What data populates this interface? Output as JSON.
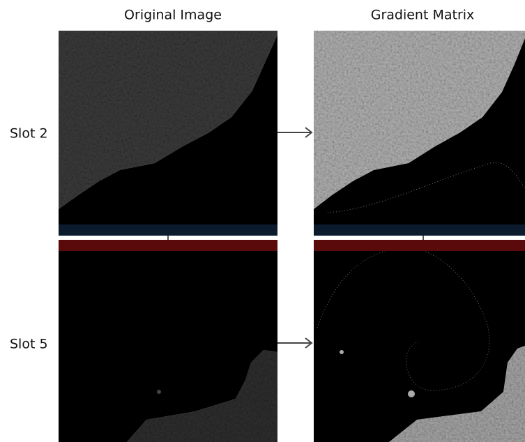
{
  "headers": {
    "original": "Original Image",
    "gradient": "Gradient Matrix"
  },
  "rows": [
    {
      "label": "Slot 2"
    },
    {
      "label": "Slot 5"
    }
  ]
}
